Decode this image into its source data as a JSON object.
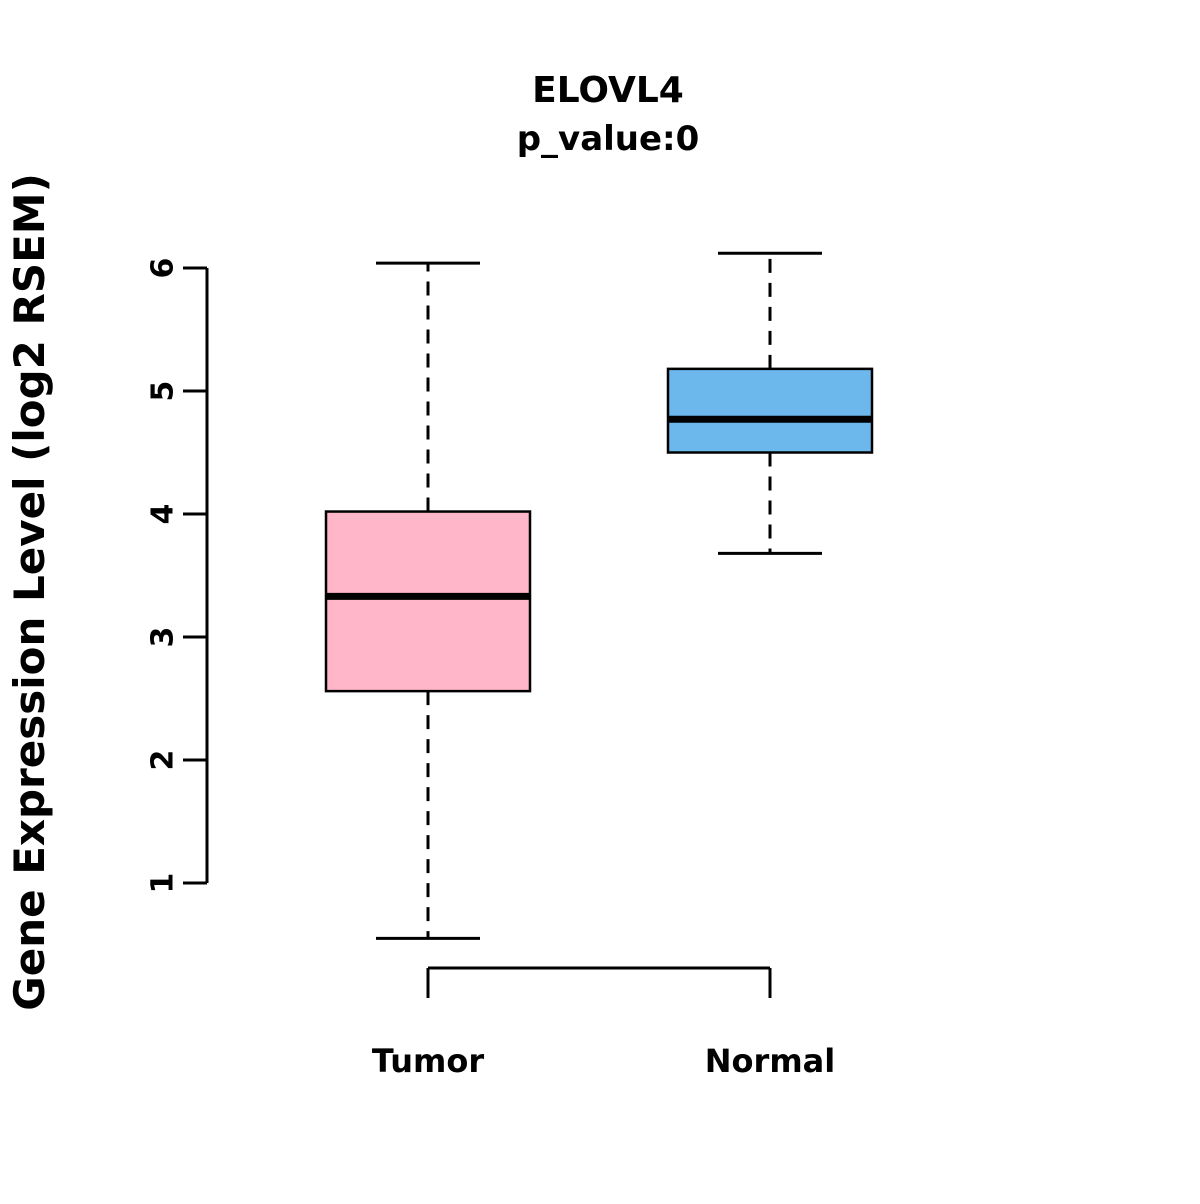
{
  "title": "ELOVL4",
  "subtitle": "p_value:0",
  "ylabel": "Gene Expression Level (log2 RSEM)",
  "colors": {
    "tumor_fill": "#FFB6C8",
    "normal_fill": "#6CB7EC",
    "stroke": "#000000"
  },
  "chart_data": {
    "type": "boxplot",
    "title": "ELOVL4",
    "subtitle": "p_value:0",
    "xlabel": "",
    "ylabel": "Gene Expression Level (log2 RSEM)",
    "categories": [
      "Tumor",
      "Normal"
    ],
    "y_ticks": [
      1,
      2,
      3,
      4,
      5,
      6
    ],
    "ylim": [
      0.4,
      6.2
    ],
    "grid": false,
    "legend": "none",
    "series": [
      {
        "name": "Tumor",
        "color": "#FFB6C8",
        "whisker_low": 0.55,
        "q1": 2.56,
        "median": 3.33,
        "q3": 4.02,
        "whisker_high": 6.04
      },
      {
        "name": "Normal",
        "color": "#6CB7EC",
        "whisker_low": 3.68,
        "q1": 4.5,
        "median": 4.77,
        "q3": 5.18,
        "whisker_high": 6.12
      }
    ]
  }
}
